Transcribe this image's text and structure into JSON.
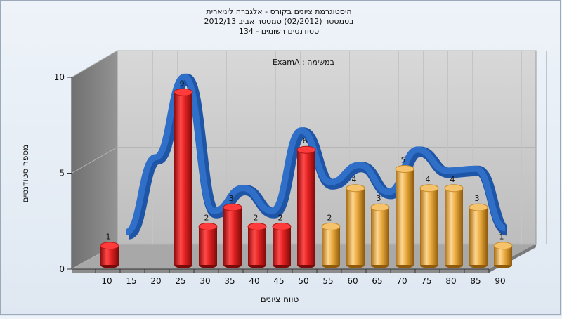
{
  "chart_data": {
    "type": "bar",
    "title_lines": [
      "היסטוגרמת ציונים בקורס - אלגברה ליניארית",
      "בסמסטר  (02/2012)  סמסטר אביב 2012/13",
      "סטודנטים רשומים - 134"
    ],
    "legend_label": "ExamA : במשימה",
    "xlabel": "טווח ציונים",
    "ylabel": "מספר סטודנטים",
    "x_ticks": [
      "10",
      "15",
      "20",
      "25",
      "30",
      "35",
      "40",
      "45",
      "50",
      "55",
      "60",
      "65",
      "70",
      "75",
      "80",
      "85",
      "90"
    ],
    "y_ticks": [
      "0",
      "5",
      "10"
    ],
    "ylim": [
      0,
      10
    ],
    "series": [
      {
        "values": [
          1,
          0,
          0,
          9,
          2,
          3,
          2,
          2,
          6,
          2,
          4,
          3,
          5,
          4,
          4,
          3,
          1
        ],
        "data_labels": [
          "1",
          "",
          "",
          "9",
          "2",
          "3",
          "2",
          "2",
          "6",
          "2",
          "4",
          "3",
          "5",
          "4",
          "4",
          "3",
          "1"
        ]
      }
    ],
    "trend_curve": [
      1.6,
      5.5,
      9.7,
      2.7,
      3.9,
      2.7,
      6.9,
      4.2,
      5.1,
      3.7,
      5.9,
      4.8,
      4.9,
      1.8
    ],
    "colors": {
      "fail_bar": "#e02020",
      "pass_bar": "#e8a93c",
      "curve": "#2f6fc8",
      "curve_back": "#6d6d6d",
      "left_wall": "#7e7e7e",
      "back_wall": "#cfcfcf",
      "floor": "#a8a8a8"
    },
    "grid": true,
    "chart_style": "3d-cylinder"
  }
}
